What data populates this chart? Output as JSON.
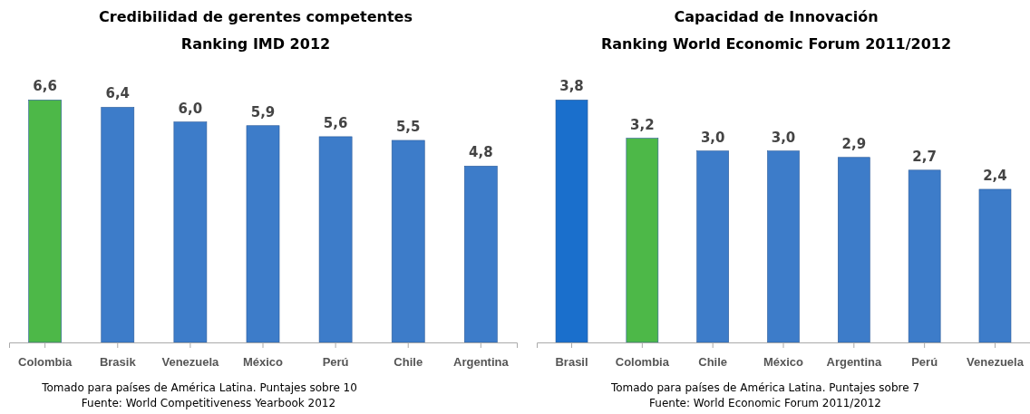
{
  "chart_data": [
    {
      "type": "bar",
      "title": "Credibilidad de gerentes competentes",
      "subtitle": "Ranking IMD 2012",
      "categories": [
        "Colombia",
        "Brasik",
        "Venezuela",
        "México",
        "Perú",
        "Chile",
        "Argentina"
      ],
      "values": [
        6.6,
        6.4,
        6.0,
        5.9,
        5.6,
        5.5,
        4.8
      ],
      "value_labels": [
        "6,6",
        "6,4",
        "6,0",
        "5,9",
        "5,6",
        "5,5",
        "4,8"
      ],
      "colors": [
        "#4db848",
        "#3d7cc9",
        "#3d7cc9",
        "#3d7cc9",
        "#3d7cc9",
        "#3d7cc9",
        "#3d7cc9"
      ],
      "tick_labels": "x",
      "annotations": [
        "Tomado para países de América Latina. Puntajes sobre 10",
        "Fuente: World Competitiveness Yearbook 2012"
      ]
    },
    {
      "type": "bar",
      "title": "Capacidad de Innovación",
      "subtitle": "Ranking World Economic Forum 2011/2012",
      "categories": [
        "Brasil",
        "Colombia",
        "Chile",
        "México",
        "Argentina",
        "Perú",
        "Venezuela"
      ],
      "values": [
        3.8,
        3.2,
        3.0,
        3.0,
        2.9,
        2.7,
        2.4
      ],
      "value_labels": [
        "3,8",
        "3,2",
        "3,0",
        "3,0",
        "2,9",
        "2,7",
        "2,4"
      ],
      "colors": [
        "#1a6fcc",
        "#4db848",
        "#3d7cc9",
        "#3d7cc9",
        "#3d7cc9",
        "#3d7cc9",
        "#3d7cc9"
      ],
      "tick_labels": "x",
      "annotations": [
        "Tomado para países de América Latina. Puntajes sobre 7",
        "Fuente: World Economic Forum  2011/2012"
      ]
    }
  ]
}
